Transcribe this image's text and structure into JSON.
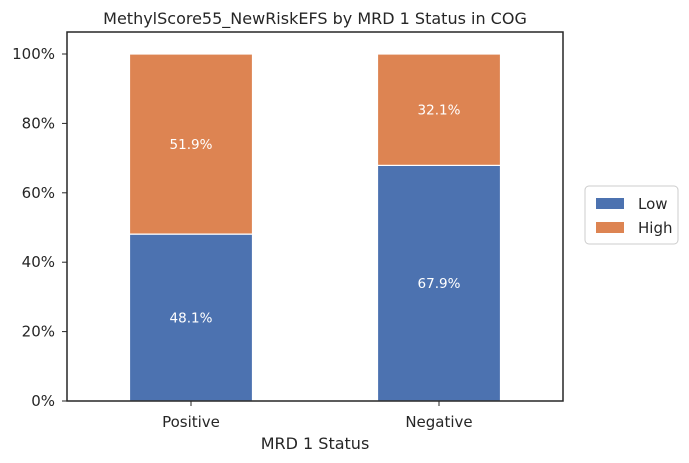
{
  "chart_data": {
    "type": "bar",
    "stacked": true,
    "title": "MethylScore55_NewRiskEFS by MRD 1 Status in COG",
    "xlabel": "MRD 1 Status",
    "ylabel": "",
    "categories": [
      "Positive",
      "Negative"
    ],
    "series": [
      {
        "name": "Low",
        "values": [
          48.1,
          67.9
        ],
        "color": "#4c72b0"
      },
      {
        "name": "High",
        "values": [
          51.9,
          32.1
        ],
        "color": "#dd8452"
      }
    ],
    "ylim": [
      0,
      100
    ],
    "yticks": [
      0,
      20,
      40,
      60,
      80,
      100
    ],
    "ytick_labels": [
      "0%",
      "20%",
      "40%",
      "60%",
      "80%",
      "100%"
    ],
    "data_labels": [
      [
        "48.1%",
        "67.9%"
      ],
      [
        "51.9%",
        "32.1%"
      ]
    ],
    "grid": false,
    "legend_position": "right"
  }
}
